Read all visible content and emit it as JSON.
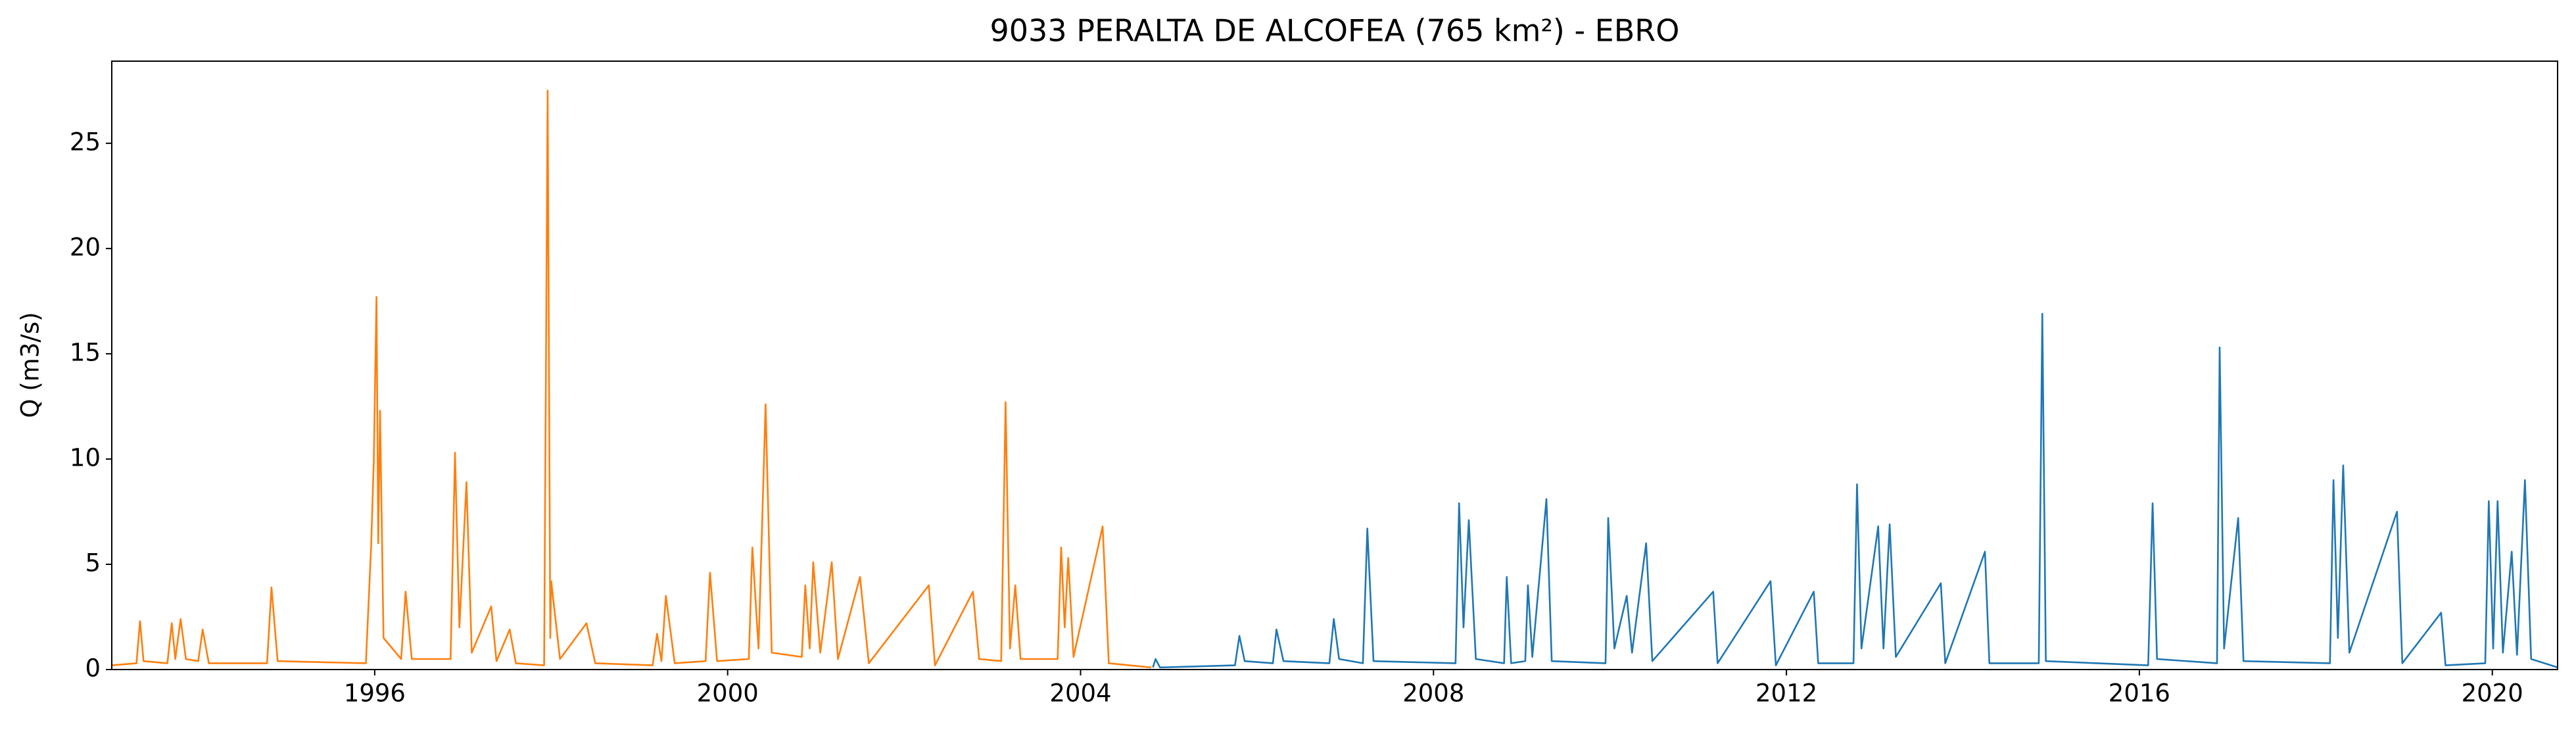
{
  "chart_data": {
    "type": "line",
    "title": "9033 PERALTA DE ALCOFEA (765 km²) - EBRO",
    "ylabel": "Q (m3/s)",
    "xlim": [
      1993.02,
      2020.74
    ],
    "xticks": [
      1996,
      2000,
      2004,
      2008,
      2012,
      2016,
      2020
    ],
    "ylim": [
      0,
      28.9
    ],
    "yticks": [
      0,
      5,
      10,
      15,
      20,
      25
    ],
    "grid": false,
    "series": [
      {
        "color": "#ff7f0e",
        "x": [
          1993.02,
          1993.3,
          1993.34,
          1993.38,
          1993.65,
          1993.7,
          1993.74,
          1993.8,
          1993.86,
          1994.0,
          1994.05,
          1994.12,
          1994.78,
          1994.83,
          1994.9,
          1995.9,
          1995.96,
          1995.99,
          1996.02,
          1996.04,
          1996.06,
          1996.1,
          1996.3,
          1996.35,
          1996.42,
          1996.86,
          1996.91,
          1996.96,
          1997.04,
          1997.1,
          1997.32,
          1997.38,
          1997.53,
          1997.6,
          1997.92,
          1997.96,
          1997.99,
          1998.0,
          1998.1,
          1998.4,
          1998.5,
          1999.15,
          1999.2,
          1999.25,
          1999.3,
          1999.4,
          1999.75,
          1999.8,
          1999.88,
          2000.24,
          2000.28,
          2000.35,
          2000.43,
          2000.5,
          2000.84,
          2000.88,
          2000.93,
          2000.97,
          2001.05,
          2001.18,
          2001.25,
          2001.5,
          2001.6,
          2002.28,
          2002.35,
          2002.78,
          2002.85,
          2003.1,
          2003.15,
          2003.2,
          2003.26,
          2003.32,
          2003.74,
          2003.78,
          2003.82,
          2003.86,
          2003.92,
          2004.25,
          2004.32,
          2004.8
        ],
        "values": [
          0.2,
          0.3,
          2.3,
          0.4,
          0.3,
          2.2,
          0.5,
          2.4,
          0.5,
          0.4,
          1.9,
          0.3,
          0.3,
          3.9,
          0.4,
          0.3,
          5.9,
          10.0,
          17.7,
          6.0,
          12.3,
          1.5,
          0.5,
          3.7,
          0.5,
          0.5,
          10.3,
          2.0,
          8.9,
          0.8,
          3.0,
          0.4,
          1.9,
          0.3,
          0.2,
          27.5,
          1.5,
          4.2,
          0.5,
          2.2,
          0.3,
          0.2,
          1.7,
          0.4,
          3.5,
          0.3,
          0.4,
          4.6,
          0.4,
          0.5,
          5.8,
          1.0,
          12.6,
          0.8,
          0.6,
          4.0,
          1.0,
          5.1,
          0.8,
          5.1,
          0.5,
          4.4,
          0.3,
          4.0,
          0.2,
          3.7,
          0.5,
          0.4,
          12.7,
          1.0,
          4.0,
          0.5,
          0.5,
          5.8,
          2.0,
          5.3,
          0.6,
          6.8,
          0.3,
          0.1
        ]
      },
      {
        "color": "#1f77b4",
        "x": [
          2004.82,
          2004.85,
          2004.9,
          2005.75,
          2005.8,
          2005.86,
          2006.18,
          2006.22,
          2006.3,
          2006.82,
          2006.87,
          2006.93,
          2007.2,
          2007.25,
          2007.32,
          2008.25,
          2008.29,
          2008.34,
          2008.4,
          2008.48,
          2008.8,
          2008.83,
          2008.88,
          2009.04,
          2009.07,
          2009.12,
          2009.28,
          2009.34,
          2009.95,
          2009.98,
          2010.05,
          2010.19,
          2010.25,
          2010.41,
          2010.48,
          2011.17,
          2011.22,
          2011.82,
          2011.88,
          2012.31,
          2012.36,
          2012.76,
          2012.8,
          2012.85,
          2013.04,
          2013.1,
          2013.17,
          2013.24,
          2013.75,
          2013.8,
          2014.25,
          2014.3,
          2014.86,
          2014.9,
          2014.94,
          2016.1,
          2016.15,
          2016.2,
          2016.88,
          2016.91,
          2016.96,
          2017.12,
          2017.18,
          2018.16,
          2018.2,
          2018.25,
          2018.31,
          2018.38,
          2018.92,
          2018.98,
          2019.42,
          2019.47,
          2019.92,
          2019.96,
          2020.01,
          2020.06,
          2020.12,
          2020.22,
          2020.28,
          2020.37,
          2020.44,
          2020.74
        ],
        "values": [
          0.1,
          0.5,
          0.1,
          0.2,
          1.6,
          0.4,
          0.3,
          1.9,
          0.4,
          0.3,
          2.4,
          0.5,
          0.3,
          6.7,
          0.4,
          0.3,
          7.9,
          2.0,
          7.1,
          0.5,
          0.3,
          4.4,
          0.3,
          0.4,
          4.0,
          0.6,
          8.1,
          0.4,
          0.3,
          7.2,
          1.0,
          3.5,
          0.8,
          6.0,
          0.4,
          3.7,
          0.3,
          4.2,
          0.2,
          3.7,
          0.3,
          0.3,
          8.8,
          1.0,
          6.8,
          1.0,
          6.9,
          0.6,
          4.1,
          0.3,
          5.6,
          0.3,
          0.3,
          16.9,
          0.4,
          0.2,
          7.9,
          0.5,
          0.3,
          15.3,
          1.0,
          7.2,
          0.4,
          0.3,
          9.0,
          1.5,
          9.7,
          0.8,
          7.5,
          0.3,
          2.7,
          0.2,
          0.3,
          8.0,
          1.0,
          8.0,
          0.8,
          5.6,
          0.7,
          9.0,
          0.5,
          0.1
        ]
      }
    ]
  }
}
